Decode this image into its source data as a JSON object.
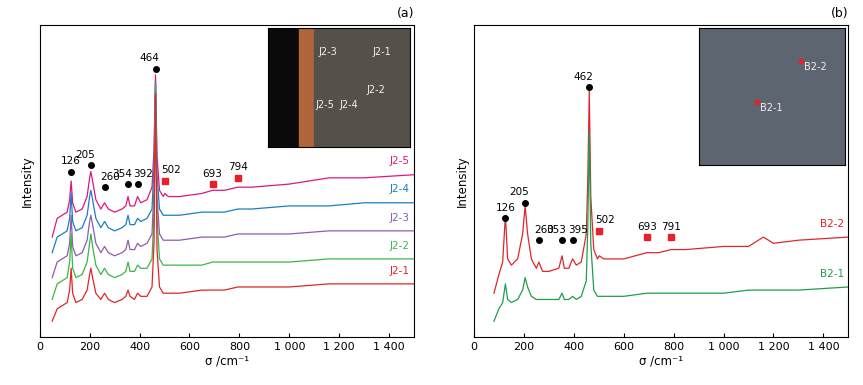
{
  "chart_data": [
    {
      "type": "line",
      "title": "(a)",
      "x_label": "σ /cm⁻¹",
      "y_label": "Intensity",
      "xlim": [
        0,
        1500
      ],
      "xticks": [
        0,
        200,
        400,
        600,
        800,
        {
          "value": 1000,
          "label": "1 000"
        },
        {
          "value": 1200,
          "label": "1 200"
        },
        {
          "value": 1400,
          "label": "1 400"
        }
      ],
      "ylim": [
        0,
        100
      ],
      "yticks": [],
      "tick_labels": "x",
      "x": [
        50,
        70,
        90,
        110,
        120,
        126,
        132,
        145,
        170,
        190,
        200,
        205,
        212,
        225,
        245,
        260,
        275,
        300,
        330,
        345,
        354,
        362,
        380,
        392,
        405,
        430,
        450,
        458,
        464,
        470,
        480,
        495,
        502,
        515,
        560,
        650,
        693,
        740,
        794,
        850,
        1000,
        1160,
        1300,
        1500
      ],
      "series": [
        {
          "name": "J2-5",
          "color": "#e0157f",
          "values": [
            32,
            38,
            39,
            40,
            44,
            50,
            43,
            40,
            41,
            45,
            51,
            53,
            50,
            44,
            41,
            43,
            41,
            40,
            41,
            42,
            45,
            42,
            42,
            45,
            43,
            44,
            48,
            60,
            84,
            58,
            47,
            45,
            46,
            45,
            45,
            46,
            47,
            47,
            48,
            48,
            49,
            51,
            51,
            52
          ]
        },
        {
          "name": "J2-4",
          "color": "#1a7fc1",
          "values": [
            27,
            32,
            33,
            34,
            38,
            46,
            37,
            34,
            35,
            39,
            45,
            47,
            44,
            38,
            35,
            37,
            35,
            34,
            35,
            36,
            39,
            36,
            36,
            38,
            37,
            38,
            41,
            55,
            82,
            52,
            41,
            39,
            39,
            39,
            39,
            40,
            40,
            40,
            41,
            41,
            42,
            42,
            43,
            43
          ]
        },
        {
          "name": "J2-3",
          "color": "#8e5cb0",
          "values": [
            19,
            24,
            25,
            26,
            30,
            39,
            29,
            26,
            27,
            31,
            37,
            39,
            36,
            30,
            27,
            29,
            27,
            26,
            27,
            28,
            31,
            28,
            28,
            30,
            29,
            30,
            33,
            48,
            81,
            45,
            33,
            31,
            31,
            31,
            31,
            32,
            32,
            32,
            33,
            33,
            33,
            34,
            34,
            34
          ]
        },
        {
          "name": "J2-2",
          "color": "#3db54a",
          "values": [
            12,
            17,
            18,
            19,
            24,
            33,
            22,
            19,
            20,
            24,
            30,
            33,
            29,
            23,
            20,
            22,
            20,
            19,
            20,
            21,
            24,
            21,
            21,
            23,
            22,
            22,
            25,
            40,
            80,
            38,
            25,
            23,
            23,
            23,
            23,
            23,
            24,
            24,
            24,
            24,
            24,
            25,
            25,
            25
          ]
        },
        {
          "name": "J2-1",
          "color": "#e0262a",
          "values": [
            5,
            9,
            10,
            11,
            15,
            22,
            14,
            11,
            12,
            15,
            20,
            22,
            19,
            14,
            12,
            14,
            12,
            11,
            12,
            13,
            15,
            13,
            12,
            14,
            13,
            13,
            16,
            30,
            78,
            28,
            16,
            14,
            14,
            14,
            14,
            15,
            15,
            15,
            16,
            16,
            16,
            17,
            17,
            17
          ]
        }
      ],
      "annotations": [
        {
          "text": "126",
          "x": 126,
          "y": 53,
          "marker": "circle",
          "color": "#000000"
        },
        {
          "text": "205",
          "x": 205,
          "y": 55,
          "marker": "circle",
          "color": "#000000"
        },
        {
          "text": "260",
          "x": 260,
          "y": 48,
          "marker": "circle",
          "color": "#000000"
        },
        {
          "text": "354",
          "x": 354,
          "y": 49,
          "marker": "circle",
          "color": "#000000"
        },
        {
          "text": "392",
          "x": 392,
          "y": 49,
          "marker": "circle",
          "color": "#000000"
        },
        {
          "text": "464",
          "x": 464,
          "y": 86,
          "marker": "circle",
          "color": "#000000"
        },
        {
          "text": "502",
          "x": 502,
          "y": 50,
          "marker": "square",
          "color": "#e8202a"
        },
        {
          "text": "693",
          "x": 693,
          "y": 49,
          "marker": "square",
          "color": "#e8202a"
        },
        {
          "text": "794",
          "x": 794,
          "y": 51,
          "marker": "square",
          "color": "#e8202a"
        }
      ],
      "inset_labels": [
        "J2-3",
        "J2-1",
        "J2-5",
        "J2-4",
        "J2-2"
      ]
    },
    {
      "type": "line",
      "title": "(b)",
      "x_label": "σ /cm⁻¹",
      "y_label": "Intensity",
      "xlim": [
        0,
        1500
      ],
      "xticks": [
        0,
        200,
        400,
        600,
        800,
        {
          "value": 1000,
          "label": "1 000"
        },
        {
          "value": 1200,
          "label": "1 200"
        },
        {
          "value": 1400,
          "label": "1 400"
        }
      ],
      "ylim": [
        0,
        100
      ],
      "yticks": [],
      "tick_labels": "x",
      "x": [
        80,
        100,
        115,
        126,
        135,
        150,
        175,
        195,
        205,
        215,
        230,
        250,
        260,
        275,
        300,
        340,
        353,
        362,
        380,
        395,
        410,
        430,
        450,
        456,
        462,
        468,
        480,
        495,
        502,
        520,
        600,
        693,
        740,
        791,
        850,
        1000,
        1100,
        1160,
        1200,
        1300,
        1500
      ],
      "series": [
        {
          "name": "B2-2",
          "color": "#e0262a",
          "values": [
            14,
            20,
            24,
            39,
            25,
            23,
            25,
            33,
            42,
            33,
            25,
            22,
            24,
            21,
            21,
            22,
            26,
            22,
            22,
            25,
            23,
            24,
            33,
            50,
            79,
            45,
            28,
            25,
            26,
            25,
            25,
            27,
            27,
            28,
            28,
            29,
            29,
            32,
            30,
            31,
            32
          ]
        },
        {
          "name": "B2-1",
          "color": "#1f9e4a",
          "values": [
            5,
            9,
            11,
            17,
            12,
            11,
            12,
            15,
            19,
            16,
            13,
            12,
            12,
            12,
            12,
            12,
            14,
            12,
            12,
            13,
            12,
            13,
            18,
            35,
            66,
            30,
            15,
            13,
            13,
            13,
            13,
            14,
            14,
            14,
            14,
            14,
            15,
            15,
            15,
            15,
            16
          ]
        }
      ],
      "annotations": [
        {
          "text": "126",
          "x": 126,
          "y": 38,
          "marker": "circle",
          "color": "#000000"
        },
        {
          "text": "205",
          "x": 205,
          "y": 43,
          "marker": "circle",
          "color": "#000000"
        },
        {
          "text": "260",
          "x": 260,
          "y": 31,
          "marker": "circle",
          "color": "#000000"
        },
        {
          "text": "353",
          "x": 353,
          "y": 31,
          "marker": "circle",
          "color": "#000000"
        },
        {
          "text": "395",
          "x": 395,
          "y": 31,
          "marker": "circle",
          "color": "#000000"
        },
        {
          "text": "462",
          "x": 462,
          "y": 80,
          "marker": "circle",
          "color": "#000000"
        },
        {
          "text": "502",
          "x": 502,
          "y": 34,
          "marker": "square",
          "color": "#e8202a"
        },
        {
          "text": "693",
          "x": 693,
          "y": 32,
          "marker": "square",
          "color": "#e8202a"
        },
        {
          "text": "791",
          "x": 791,
          "y": 32,
          "marker": "square",
          "color": "#e8202a"
        }
      ],
      "inset_labels": [
        "B2-2",
        "B2-1"
      ]
    }
  ]
}
